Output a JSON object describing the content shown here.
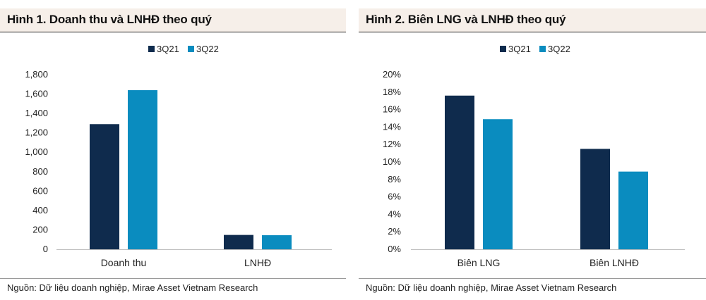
{
  "colors": {
    "series1": "#0f2b4d",
    "series2": "#0a8cbf",
    "title_bg": "#f6efe9"
  },
  "left": {
    "title": "Hình 1. Doanh thu và LNHĐ theo quý",
    "source": "Nguồn: Dữ liệu doanh nghiệp, Mirae Asset Vietnam Research"
  },
  "right": {
    "title": "Hình 2. Biên LNG và LNHĐ theo quý",
    "source": "Nguồn: Dữ liệu doanh nghiệp, Mirae Asset Vietnam Research"
  },
  "chart_data": [
    {
      "type": "bar",
      "title": "Hình 1. Doanh thu và LNHĐ theo quý",
      "categories": [
        "Doanh thu",
        "LNHĐ"
      ],
      "series": [
        {
          "name": "3Q21",
          "values": [
            1290,
            148
          ]
        },
        {
          "name": "3Q22",
          "values": [
            1640,
            145
          ]
        }
      ],
      "ylim": [
        0,
        1800
      ],
      "yticks": [
        0,
        200,
        400,
        600,
        800,
        1000,
        1200,
        1400,
        1600,
        1800
      ],
      "ytick_labels": [
        "0",
        "200",
        "400",
        "600",
        "800",
        "1,000",
        "1,200",
        "1,400",
        "1,600",
        "1,800"
      ],
      "legend": "top-center",
      "grid": false
    },
    {
      "type": "bar",
      "title": "Hình 2. Biên LNG và LNHĐ theo quý",
      "categories": [
        "Biên LNG",
        "Biên LNHĐ"
      ],
      "series": [
        {
          "name": "3Q21",
          "values": [
            17.6,
            11.5
          ]
        },
        {
          "name": "3Q22",
          "values": [
            14.9,
            8.9
          ]
        }
      ],
      "ylim": [
        0,
        20
      ],
      "yticks": [
        0,
        2,
        4,
        6,
        8,
        10,
        12,
        14,
        16,
        18,
        20
      ],
      "ytick_labels": [
        "0%",
        "2%",
        "4%",
        "6%",
        "8%",
        "10%",
        "12%",
        "14%",
        "16%",
        "18%",
        "20%"
      ],
      "legend": "top-center",
      "grid": false
    }
  ]
}
